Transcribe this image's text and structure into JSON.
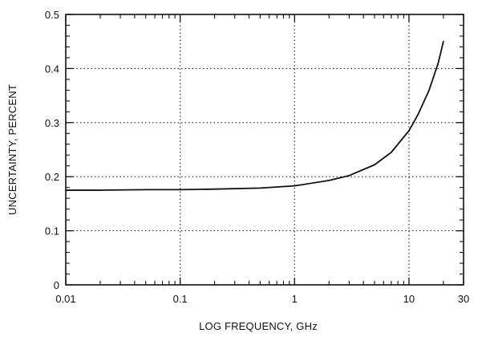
{
  "chart_data": {
    "type": "line",
    "title": "",
    "xlabel": "LOG FREQUENCY, GHz",
    "ylabel": "UNCERTAINTY, PERCENT",
    "x_scale": "log",
    "xlim": [
      0.01,
      30
    ],
    "ylim": [
      0,
      0.5
    ],
    "grid": true,
    "x_ticks": [
      {
        "value": 0.01,
        "label": "0.01"
      },
      {
        "value": 0.1,
        "label": "0.1"
      },
      {
        "value": 1,
        "label": "1"
      },
      {
        "value": 10,
        "label": "10"
      },
      {
        "value": 30,
        "label": "30"
      }
    ],
    "y_ticks": [
      {
        "value": 0,
        "label": "0"
      },
      {
        "value": 0.1,
        "label": "0.1"
      },
      {
        "value": 0.2,
        "label": "0.2"
      },
      {
        "value": 0.3,
        "label": "0.3"
      },
      {
        "value": 0.4,
        "label": "0.4"
      },
      {
        "value": 0.5,
        "label": "0.5"
      }
    ],
    "series": [
      {
        "x": [
          0.01,
          0.02,
          0.05,
          0.1,
          0.2,
          0.5,
          1,
          2,
          3,
          5,
          7,
          10,
          12,
          15,
          18,
          20
        ],
        "y": [
          0.175,
          0.175,
          0.176,
          0.176,
          0.177,
          0.179,
          0.183,
          0.193,
          0.202,
          0.222,
          0.245,
          0.285,
          0.315,
          0.36,
          0.41,
          0.45
        ]
      }
    ]
  }
}
